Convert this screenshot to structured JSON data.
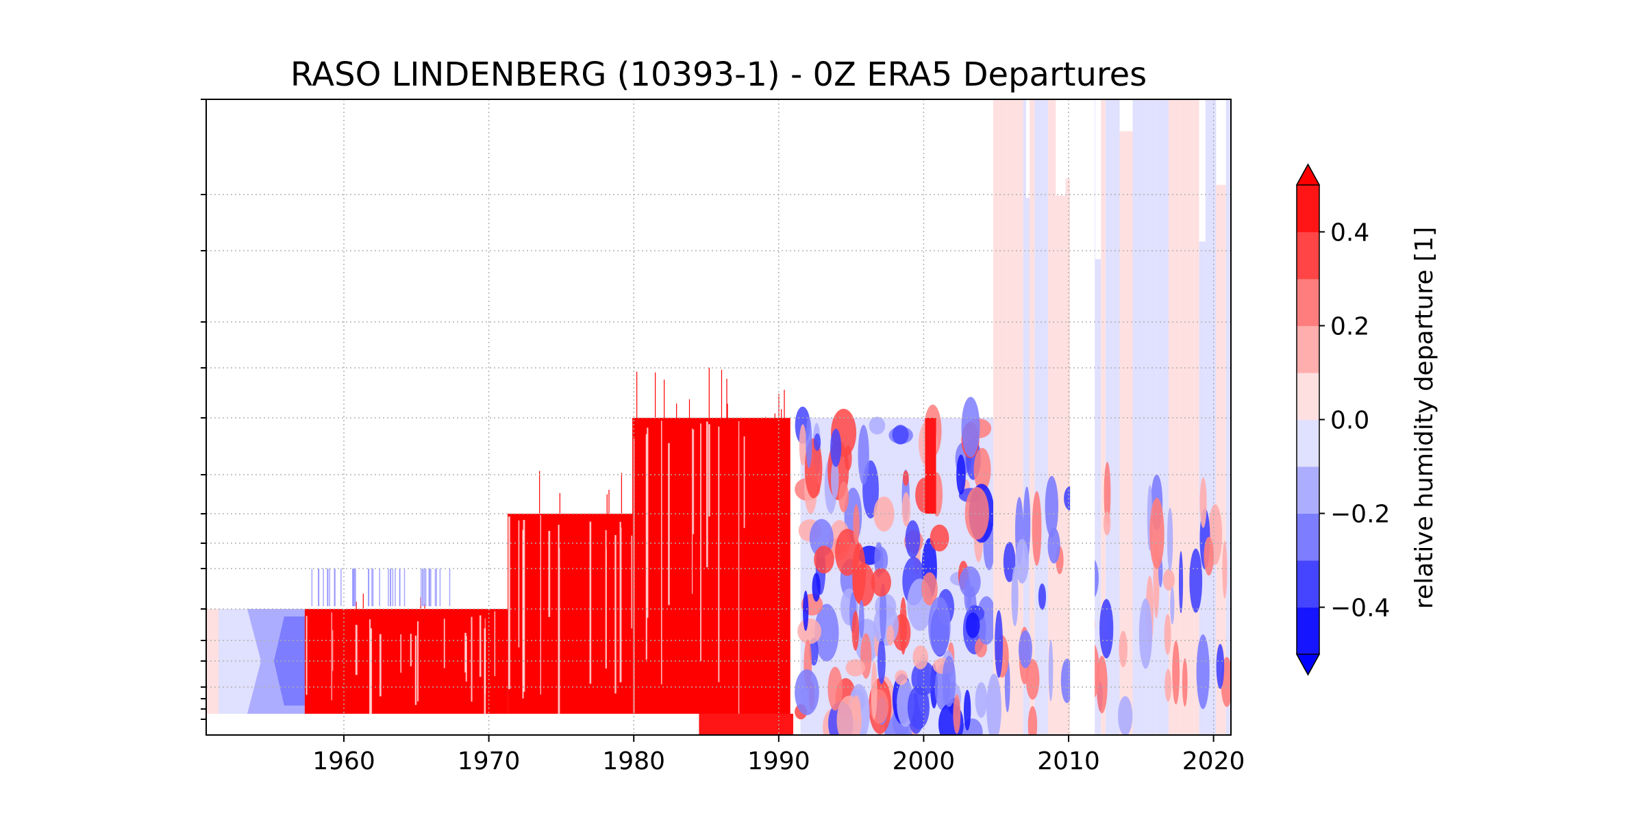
{
  "chart_data": {
    "type": "heatmap",
    "title": "RASO LINDENBERG (10393-1) - 0Z ERA5 Departures",
    "xlabel": "",
    "ylabel": "",
    "xlim": [
      1950.5,
      2021.2
    ],
    "x_ticks": [
      1960,
      1970,
      1980,
      1990,
      2000,
      2010,
      2020
    ],
    "y_tick_labels": [],
    "grid": true,
    "colorbar": {
      "label": "relative humidity departure [1]",
      "range": [
        -0.5,
        0.5
      ],
      "extend": "both",
      "ticks": [
        "0.4",
        "0.2",
        "0.0",
        "−0.2",
        "−0.4"
      ],
      "levels": [
        -0.5,
        -0.4,
        -0.3,
        -0.2,
        -0.1,
        0.0,
        0.1,
        0.2,
        0.3,
        0.4,
        0.5
      ],
      "colors": [
        "#1515ff",
        "#4545ff",
        "#7d7dff",
        "#adadff",
        "#e0e0ff",
        "#ffe0e0",
        "#ffadad",
        "#ff7d7d",
        "#ff4545",
        "#ff1515"
      ],
      "under_color": "#0000ff",
      "over_color": "#ff0000"
    },
    "regions": [
      {
        "x": [
          1950.5,
          1957.3
        ],
        "level": "mixed",
        "value": -0.1
      },
      {
        "x": [
          1957.3,
          1971.3
        ],
        "level": "low",
        "value": 0.5
      },
      {
        "x": [
          1971.3,
          1979.9
        ],
        "level": "mid",
        "value": 0.5
      },
      {
        "x": [
          1979.9,
          1990.8
        ],
        "level": "high",
        "value": 0.5
      },
      {
        "x": [
          1991.5,
          2004.8
        ],
        "level": "mixed",
        "value": -0.1
      },
      {
        "x": [
          2004.8,
          2021.0
        ],
        "level": "full",
        "value": 0.05
      }
    ]
  }
}
